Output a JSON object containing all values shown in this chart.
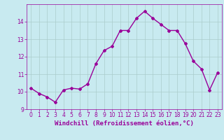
{
  "x": [
    0,
    1,
    2,
    3,
    4,
    5,
    6,
    7,
    8,
    9,
    10,
    11,
    12,
    13,
    14,
    15,
    16,
    17,
    18,
    19,
    20,
    21,
    22,
    23
  ],
  "y": [
    10.2,
    9.9,
    9.7,
    9.4,
    10.1,
    10.2,
    10.15,
    10.45,
    11.6,
    12.35,
    12.6,
    13.5,
    13.5,
    14.2,
    14.6,
    14.2,
    13.85,
    13.5,
    13.5,
    12.75,
    11.75,
    11.3,
    10.1,
    11.1
  ],
  "line_color": "#990099",
  "marker": "D",
  "marker_size": 2.0,
  "bg_color": "#c8eaf0",
  "grid_color": "#aacccc",
  "xlabel": "Windchill (Refroidissement éolien,°C)",
  "xlabel_color": "#990099",
  "tick_color": "#990099",
  "ylim": [
    9,
    15
  ],
  "xlim": [
    -0.5,
    23.5
  ],
  "yticks": [
    9,
    10,
    11,
    12,
    13,
    14
  ],
  "xticks": [
    0,
    1,
    2,
    3,
    4,
    5,
    6,
    7,
    8,
    9,
    10,
    11,
    12,
    13,
    14,
    15,
    16,
    17,
    18,
    19,
    20,
    21,
    22,
    23
  ],
  "line_width": 1.0,
  "tick_fontsize": 5.5,
  "xlabel_fontsize": 6.5
}
